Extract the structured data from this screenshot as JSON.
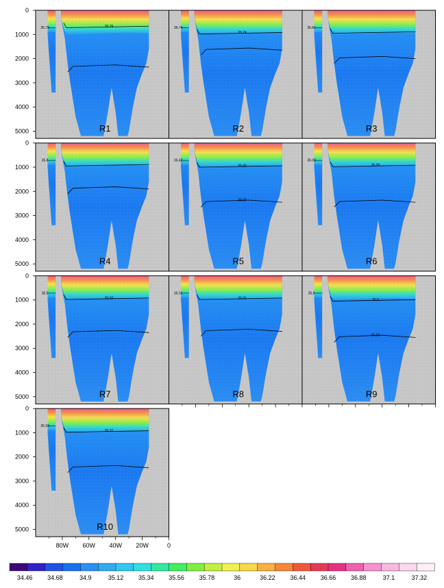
{
  "chart_data": {
    "type": "heatmap",
    "title": "",
    "xlabel": "",
    "ylabel": "",
    "x_ticks": [
      "80W",
      "60W",
      "40W",
      "20W",
      "0"
    ],
    "y_ticks": [
      "0",
      "1000",
      "2000",
      "3000",
      "4000",
      "5000"
    ],
    "ylim": [
      0,
      5300
    ],
    "y_inverted": true,
    "grid": true,
    "background_color": "#c8c8c8",
    "colorbar": {
      "orientation": "horizontal",
      "tick_labels": [
        "34.46",
        "34.68",
        "34.9",
        "35.12",
        "35.34",
        "35.56",
        "35.78",
        "36",
        "36.22",
        "36.44",
        "36.66",
        "36.88",
        "37.1",
        "37.32"
      ],
      "colors": [
        "#3a0a7a",
        "#3020c8",
        "#2050e8",
        "#1a70f0",
        "#2a90f4",
        "#30aaf0",
        "#30c8f0",
        "#30e0e0",
        "#30e8a0",
        "#40f060",
        "#80f040",
        "#c0f040",
        "#f0f050",
        "#f8d848",
        "#f8b040",
        "#f88838",
        "#f05838",
        "#e83858",
        "#e83080",
        "#f060b0",
        "#f890d0",
        "#f8b8e0",
        "#fcd8ec",
        "#fff0f8"
      ]
    },
    "panels": [
      {
        "name": "R1",
        "contours": [
          {
            "value": "35.79",
            "depths": [
              720,
              2300
            ]
          }
        ],
        "contour_labels": [
          "35.79",
          "35.79"
        ]
      },
      {
        "name": "R2",
        "contours": [
          {
            "value": "35.74",
            "depths": [
              980,
              1600
            ]
          }
        ],
        "contour_labels": [
          "35.74",
          "35.74"
        ]
      },
      {
        "name": "R3",
        "contours": [
          {
            "value": "35.81",
            "depths": [
              950,
              1950
            ]
          }
        ],
        "contour_labels": [
          "35.81"
        ]
      },
      {
        "name": "R4",
        "contours": [
          {
            "value": "35.8",
            "depths": [
              950,
              1850
            ]
          }
        ],
        "contour_labels": [
          "35.8"
        ]
      },
      {
        "name": "R5",
        "contours": [
          {
            "value": "35.42",
            "depths": [
              1000,
              2400
            ]
          }
        ],
        "contour_labels": [
          "35.42",
          "35.42",
          "35.02"
        ]
      },
      {
        "name": "R6",
        "contours": [
          {
            "value": "35.08",
            "depths": [
              980,
              2400
            ]
          }
        ],
        "contour_labels": [
          "35.08",
          "35.08"
        ]
      },
      {
        "name": "R7",
        "contours": [
          {
            "value": "35.5",
            "depths": [
              980,
              2300
            ]
          }
        ],
        "contour_labels": [
          "35.5",
          "35.02"
        ]
      },
      {
        "name": "R8",
        "contours": [
          {
            "value": "35.01",
            "depths": [
              980,
              2250
            ]
          }
        ],
        "contour_labels": [
          "35.01",
          "35.01"
        ]
      },
      {
        "name": "R9",
        "contours": [
          {
            "value": "35.5",
            "depths": [
              1050,
              2500
            ]
          }
        ],
        "contour_labels": [
          "35.8",
          "35.5",
          "35.02"
        ]
      },
      {
        "name": "R10",
        "contours": [
          {
            "value": "35.33",
            "depths": [
              980,
              2400
            ]
          }
        ],
        "contour_labels": [
          "35.33",
          "35.27"
        ]
      }
    ]
  }
}
